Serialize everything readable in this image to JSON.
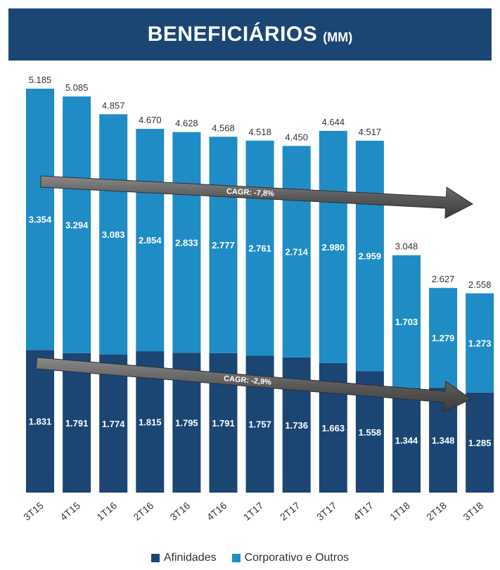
{
  "title": "BENEFICIÁRIOS",
  "title_unit": "(MM)",
  "chart_data": {
    "type": "bar",
    "stacked": true,
    "categories": [
      "3T15",
      "4T15",
      "1T16",
      "2T16",
      "3T16",
      "4T16",
      "1T17",
      "2T17",
      "3T17",
      "4T17",
      "1T18",
      "2T18",
      "3T18"
    ],
    "series": [
      {
        "name": "Afinidades",
        "color": "#1b4674",
        "values": [
          1.831,
          1.791,
          1.774,
          1.815,
          1.795,
          1.791,
          1.757,
          1.736,
          1.663,
          1.558,
          1.344,
          1.348,
          1.285
        ],
        "labels": [
          "1.831",
          "1.791",
          "1.774",
          "1.815",
          "1.795",
          "1.791",
          "1.757",
          "1.736",
          "1.663",
          "1.558",
          "1.344",
          "1.348",
          "1.285"
        ]
      },
      {
        "name": "Corporativo e Outros",
        "color": "#1f8cc6",
        "values": [
          3.354,
          3.294,
          3.083,
          2.854,
          2.833,
          2.777,
          2.761,
          2.714,
          2.98,
          2.959,
          1.703,
          1.279,
          1.273
        ],
        "labels": [
          "3.354",
          "3.294",
          "3.083",
          "2.854",
          "2.833",
          "2.777",
          "2.761",
          "2.714",
          "2.980",
          "2.959",
          "1.703",
          "1.279",
          "1.273"
        ]
      }
    ],
    "totals": [
      5.185,
      5.085,
      4.857,
      4.67,
      4.628,
      4.568,
      4.518,
      4.45,
      4.644,
      4.517,
      3.048,
      2.627,
      2.558
    ],
    "total_labels": [
      "5.185",
      "5.085",
      "4.857",
      "4.670",
      "4.628",
      "4.568",
      "4.518",
      "4.450",
      "4.644",
      "4.517",
      "3.048",
      "2.627",
      "2.558"
    ],
    "annotations": [
      {
        "text": "CAGR: -7,8%",
        "series": "Corporativo e Outros"
      },
      {
        "text": "CAGR: -2,9%",
        "series": "Afinidades"
      }
    ],
    "ylim": [
      0,
      5.185
    ],
    "grid": false,
    "legend_position": "bottom"
  }
}
